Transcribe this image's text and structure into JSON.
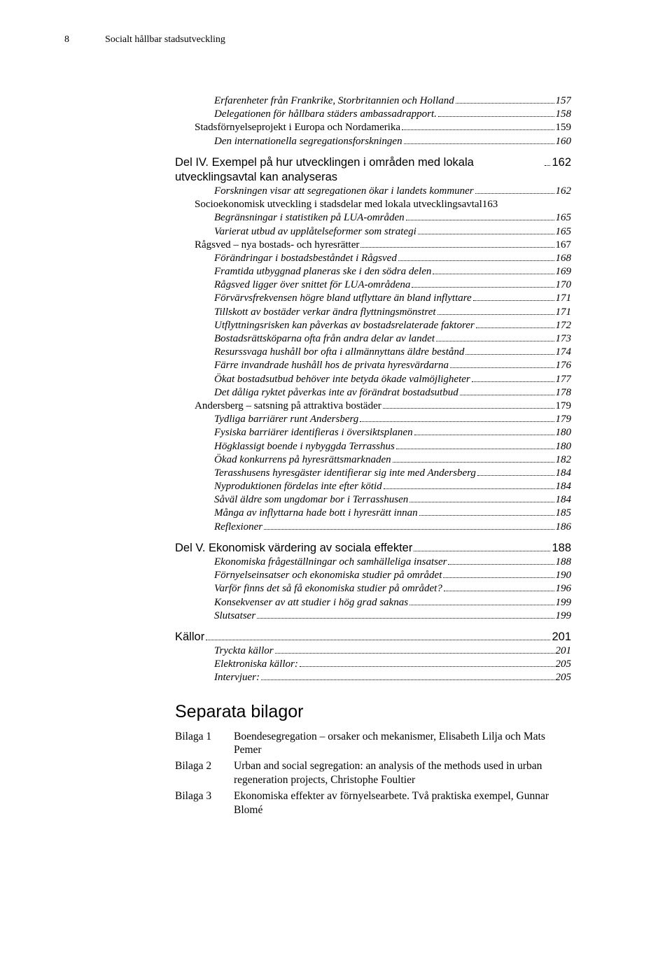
{
  "header": {
    "page_number": "8",
    "running_head": "Socialt hållbar stadsutveckling"
  },
  "toc": [
    {
      "indent": 2,
      "style": "italic",
      "title": "Erfarenheter från Frankrike, Storbritannien och Holland",
      "page": "157"
    },
    {
      "indent": 2,
      "style": "italic",
      "title": "Delegationen för hållbara städers ambassadrapport.",
      "page": "158"
    },
    {
      "indent": 1,
      "style": "plain",
      "title": "Stadsförnyelseprojekt i Europa och Nordamerika",
      "page": "159"
    },
    {
      "indent": 2,
      "style": "italic",
      "title": "Den internationella segregationsforskningen",
      "page": "160"
    },
    {
      "indent": 0,
      "style": "sans",
      "title": "Del IV. Exempel på hur utvecklingen i områden med lokala utvecklingsavtal kan analyseras",
      "page": "162",
      "size": "fs16"
    },
    {
      "indent": 2,
      "style": "italic",
      "title": "Forskningen visar att segregationen ökar i landets kommuner",
      "page": "162"
    },
    {
      "indent": 1,
      "style": "plain",
      "title": "Socioekonomisk utveckling i stadsdelar med lokala utvecklingsavtal",
      "page": "163",
      "nodots": true
    },
    {
      "indent": 2,
      "style": "italic",
      "title": "Begränsningar i statistiken på LUA-områden",
      "page": "165"
    },
    {
      "indent": 2,
      "style": "italic",
      "title": "Varierat utbud av upplåtelseformer som strategi",
      "page": "165"
    },
    {
      "indent": 1,
      "style": "plain",
      "title": "Rågsved – nya bostads- och hyresrätter",
      "page": "167"
    },
    {
      "indent": 2,
      "style": "italic",
      "title": "Förändringar i bostadsbeståndet i Rågsved",
      "page": "168"
    },
    {
      "indent": 2,
      "style": "italic",
      "title": "Framtida utbyggnad planeras ske i den södra delen",
      "page": "169"
    },
    {
      "indent": 2,
      "style": "italic",
      "title": "Rågsved ligger över snittet för LUA-områdena",
      "page": "170"
    },
    {
      "indent": 2,
      "style": "italic",
      "title": "Förvärvsfrekvensen högre bland utflyttare än bland inflyttare",
      "page": "171"
    },
    {
      "indent": 2,
      "style": "italic",
      "title": "Tillskott av bostäder verkar ändra flyttningsmönstret",
      "page": "171"
    },
    {
      "indent": 2,
      "style": "italic",
      "title": "Utflyttningsrisken kan påverkas av bostadsrelaterade faktorer",
      "page": "172"
    },
    {
      "indent": 2,
      "style": "italic",
      "title": "Bostadsrättsköparna ofta från andra delar av landet",
      "page": "173"
    },
    {
      "indent": 2,
      "style": "italic",
      "title": "Resurssvaga hushåll bor ofta i allmännyttans äldre bestånd",
      "page": "174"
    },
    {
      "indent": 2,
      "style": "italic",
      "title": "Färre invandrade hushåll hos de privata hyresvärdarna",
      "page": "176"
    },
    {
      "indent": 2,
      "style": "italic",
      "title": "Ökat bostadsutbud behöver inte betyda ökade valmöjligheter",
      "page": "177"
    },
    {
      "indent": 2,
      "style": "italic",
      "title": "Det dåliga ryktet påverkas inte av förändrat bostadsutbud",
      "page": "178"
    },
    {
      "indent": 1,
      "style": "plain",
      "title": "Andersberg – satsning på attraktiva bostäder",
      "page": "179"
    },
    {
      "indent": 2,
      "style": "italic",
      "title": "Tydliga barriärer runt Andersberg",
      "page": "179"
    },
    {
      "indent": 2,
      "style": "italic",
      "title": "Fysiska barriärer identifieras i översiktsplanen",
      "page": "180"
    },
    {
      "indent": 2,
      "style": "italic",
      "title": "Högklassigt boende i nybyggda Terrasshus",
      "page": "180"
    },
    {
      "indent": 2,
      "style": "italic",
      "title": "Ökad konkurrens på hyresrättsmarknaden",
      "page": "182"
    },
    {
      "indent": 2,
      "style": "italic",
      "title": "Terasshusens hyresgäster identifierar sig inte med Andersberg",
      "page": "184"
    },
    {
      "indent": 2,
      "style": "italic",
      "title": "Nyproduktionen fördelas inte efter kötid",
      "page": "184"
    },
    {
      "indent": 2,
      "style": "italic",
      "title": "Såväl äldre som ungdomar bor i Terrasshusen",
      "page": "184"
    },
    {
      "indent": 2,
      "style": "italic",
      "title": "Många av inflyttarna hade bott i hyresrätt innan",
      "page": "185"
    },
    {
      "indent": 2,
      "style": "italic",
      "title": "Reflexioner",
      "page": "186"
    },
    {
      "indent": 0,
      "style": "sans",
      "title": "Del V. Ekonomisk värdering av sociala effekter",
      "page": "188",
      "size": "fs16"
    },
    {
      "indent": 2,
      "style": "italic",
      "title": "Ekonomiska frågeställningar och samhälleliga insatser",
      "page": "188"
    },
    {
      "indent": 2,
      "style": "italic",
      "title": "Förnyelseinsatser och ekonomiska studier på området",
      "page": "190"
    },
    {
      "indent": 2,
      "style": "italic",
      "title": "Varför finns det så få ekonomiska studier på området?",
      "page": "196"
    },
    {
      "indent": 2,
      "style": "italic",
      "title": "Konsekvenser av att studier i hög grad saknas",
      "page": "199"
    },
    {
      "indent": 2,
      "style": "italic",
      "title": "Slutsatser",
      "page": "199"
    },
    {
      "indent": 0,
      "style": "sans",
      "title": "Källor",
      "page": "201",
      "size": "fs16"
    },
    {
      "indent": 2,
      "style": "italic",
      "title": "Tryckta källor",
      "page": "201"
    },
    {
      "indent": 2,
      "style": "italic",
      "title": "Elektroniska källor:",
      "page": "205"
    },
    {
      "indent": 2,
      "style": "italic",
      "title": "Intervjuer:",
      "page": "205"
    }
  ],
  "bilagor": {
    "heading": "Separata bilagor",
    "items": [
      {
        "label": "Bilaga 1",
        "text": "Boendesegregation – orsaker och mekanismer, Elisabeth Lilja och Mats Pemer"
      },
      {
        "label": "Bilaga 2",
        "text": "Urban and social segregation: an analysis of the methods used in urban regeneration projects, Christophe Foultier"
      },
      {
        "label": "Bilaga 3",
        "text": "Ekonomiska effekter av förnyelsearbete. Två praktiska exempel, Gunnar Blomé"
      }
    ]
  }
}
